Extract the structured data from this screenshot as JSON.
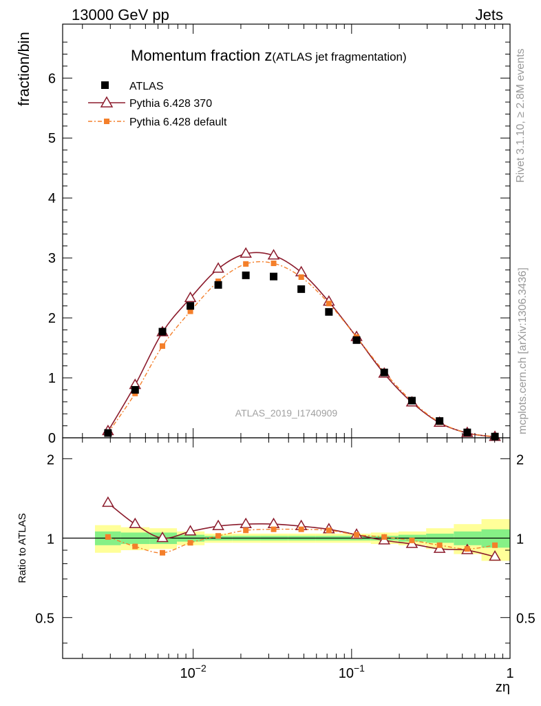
{
  "header": {
    "left_label": "13000 GeV pp",
    "right_label": "Jets"
  },
  "side_labels": {
    "rivet": "Rivet 3.1.10, ≥ 2.8M events",
    "mcplots": "mcplots.cern.ch [arXiv:1306.3436]"
  },
  "colors": {
    "data": "#000000",
    "pythia370": "#8b1a2b",
    "pythia_default": "#f47f2a",
    "band_inner": "#86f086",
    "band_outer": "#ffff99"
  },
  "chart_data": [
    {
      "type": "scatter",
      "panel": "main",
      "title": "Momentum fraction z",
      "title_sub": "(ATLAS jet fragmentation)",
      "watermark": "ATLAS_2019_I1740909",
      "xlabel": "zη",
      "ylabel": "fraction/bin",
      "xscale": "log",
      "xlim": [
        0.0015,
        1.0
      ],
      "ylim": [
        0,
        6.9
      ],
      "yticks": [
        0,
        1,
        2,
        3,
        4,
        5,
        6
      ],
      "ytick_labels": [
        "0",
        "1",
        "2",
        "3",
        "4",
        "5",
        "6"
      ],
      "legend_position": "top-left",
      "x": [
        0.0029,
        0.0043,
        0.0064,
        0.0096,
        0.0144,
        0.0215,
        0.0322,
        0.0481,
        0.0719,
        0.1075,
        0.1607,
        0.2403,
        0.3592,
        0.537,
        0.8028
      ],
      "series": [
        {
          "name": "ATLAS",
          "style": "data",
          "values": [
            0.08,
            0.8,
            1.77,
            2.2,
            2.55,
            2.71,
            2.69,
            2.48,
            2.1,
            1.63,
            1.09,
            0.62,
            0.28,
            0.09,
            0.02
          ]
        },
        {
          "name": "Pythia 6.428 370",
          "style": "triangle",
          "values": [
            0.11,
            0.88,
            1.76,
            2.33,
            2.82,
            3.07,
            3.04,
            2.76,
            2.27,
            1.68,
            1.07,
            0.59,
            0.25,
            0.08,
            0.015
          ]
        },
        {
          "name": "Pythia 6.428 default",
          "style": "square",
          "values": [
            0.08,
            0.74,
            1.53,
            2.11,
            2.61,
            2.9,
            2.91,
            2.68,
            2.24,
            1.68,
            1.1,
            0.61,
            0.26,
            0.08,
            0.02
          ]
        }
      ]
    },
    {
      "type": "line",
      "panel": "ratio",
      "ylabel": "Ratio to ATLAS",
      "xscale": "log",
      "yscale": "log",
      "xlim": [
        0.0015,
        1.0
      ],
      "ylim": [
        0.35,
        2.4
      ],
      "yticks": [
        0.5,
        1,
        2
      ],
      "ytick_labels": [
        "0.5",
        "1",
        "2"
      ],
      "xticks": [
        0.01,
        0.1,
        1
      ],
      "xtick_labels": [
        "10",
        "10",
        "1"
      ],
      "xtick_exponents": [
        "−2",
        "−1",
        ""
      ],
      "x": [
        0.0029,
        0.0043,
        0.0064,
        0.0096,
        0.0144,
        0.0215,
        0.0322,
        0.0481,
        0.0719,
        0.1075,
        0.1607,
        0.2403,
        0.3592,
        0.537,
        0.8028
      ],
      "bin_edges": [
        0.0024,
        0.0035,
        0.0053,
        0.0079,
        0.0118,
        0.0177,
        0.0265,
        0.0396,
        0.0592,
        0.0884,
        0.1322,
        0.1976,
        0.2955,
        0.4418,
        0.6605,
        1.0
      ],
      "band_inner": [
        0.06,
        0.05,
        0.05,
        0.03,
        0.02,
        0.02,
        0.02,
        0.02,
        0.02,
        0.02,
        0.02,
        0.03,
        0.04,
        0.06,
        0.08
      ],
      "band_outer": [
        0.12,
        0.1,
        0.09,
        0.06,
        0.04,
        0.04,
        0.04,
        0.04,
        0.04,
        0.04,
        0.05,
        0.06,
        0.09,
        0.13,
        0.18
      ],
      "series": [
        {
          "name": "Pythia 6.428 370",
          "style": "triangle",
          "values": [
            1.36,
            1.13,
            1.0,
            1.06,
            1.11,
            1.13,
            1.13,
            1.11,
            1.08,
            1.03,
            0.98,
            0.95,
            0.91,
            0.9,
            0.85
          ]
        },
        {
          "name": "Pythia 6.428 default",
          "style": "square",
          "values": [
            1.01,
            0.93,
            0.88,
            0.96,
            1.02,
            1.07,
            1.08,
            1.08,
            1.07,
            1.03,
            1.01,
            0.98,
            0.94,
            0.91,
            0.94
          ]
        }
      ]
    }
  ]
}
